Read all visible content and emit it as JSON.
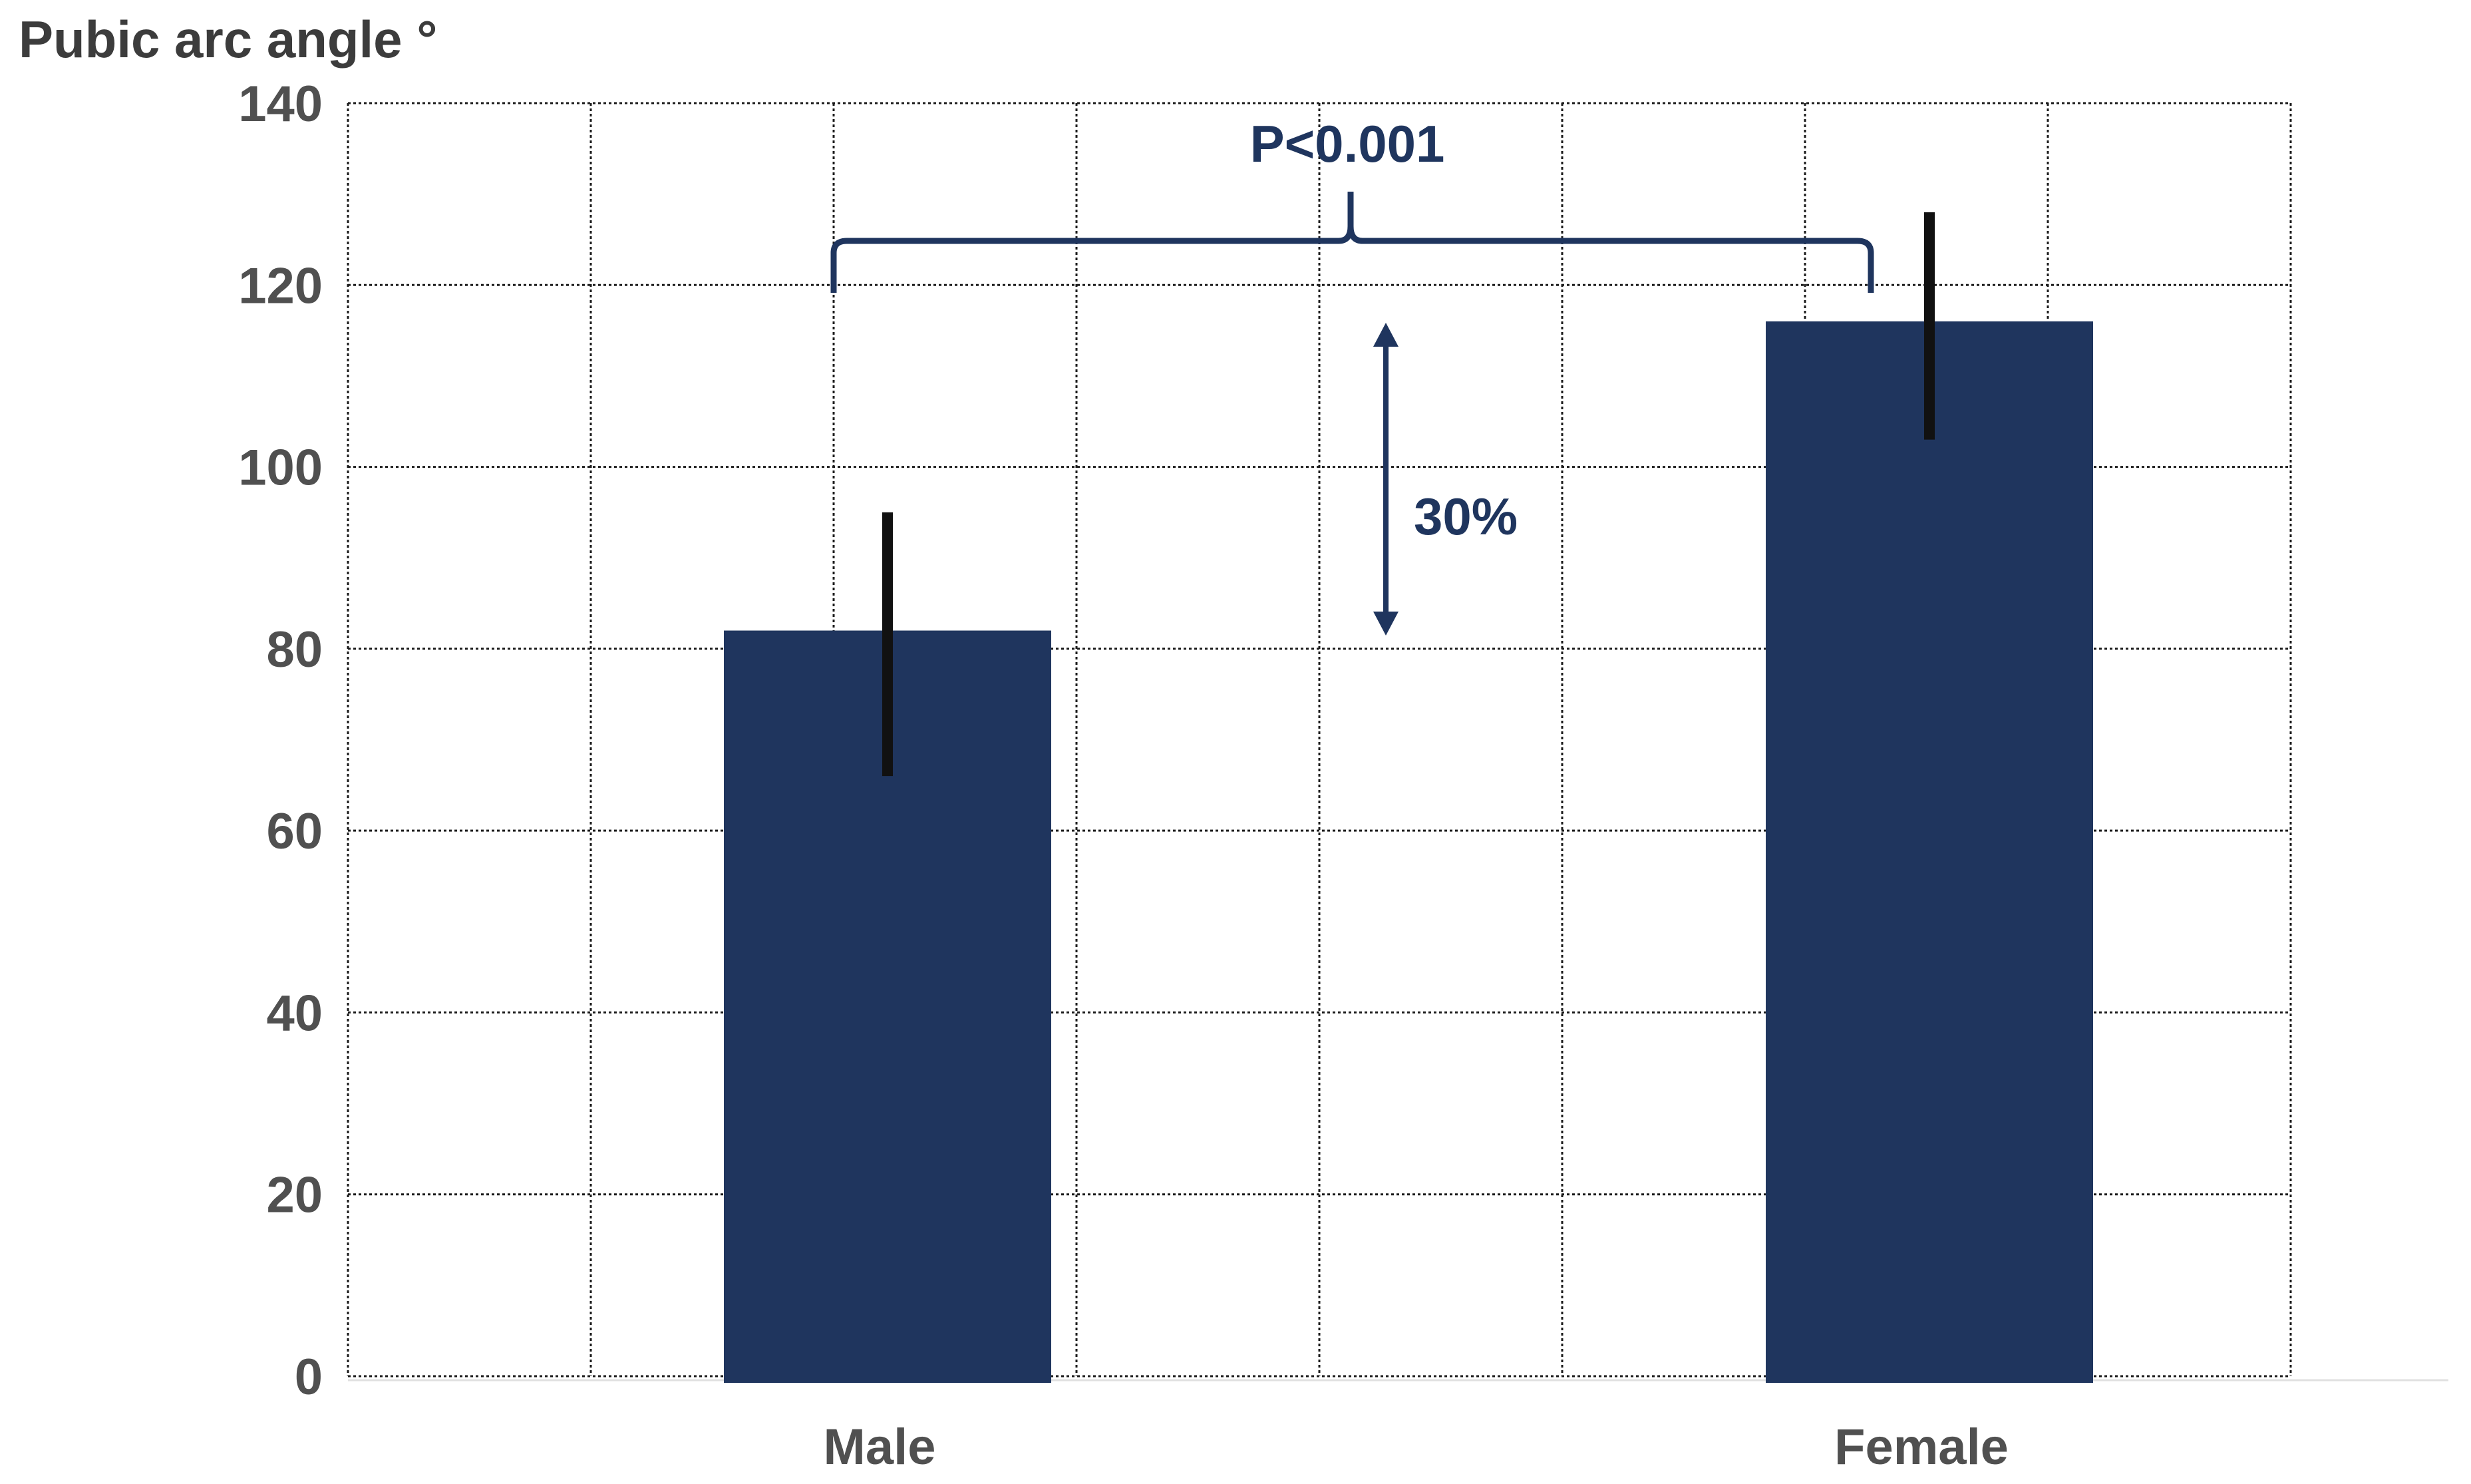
{
  "chart_data": {
    "type": "bar",
    "ylabel": "Pubic arc angle °",
    "categories": [
      "Male",
      "Female"
    ],
    "values": [
      82,
      116
    ],
    "error": [
      {
        "low": 66,
        "high": 95
      },
      {
        "low": 103,
        "high": 128
      }
    ],
    "ylim": [
      0,
      140
    ],
    "yticks": [
      0,
      20,
      40,
      60,
      80,
      100,
      120,
      140
    ],
    "grid": true,
    "grid_style": "dotted",
    "bar_color": "#1f355e",
    "error_color": "#111111",
    "annotations": {
      "p_value": "P<0.001",
      "difference": "30%",
      "color": "#1f355e"
    }
  }
}
